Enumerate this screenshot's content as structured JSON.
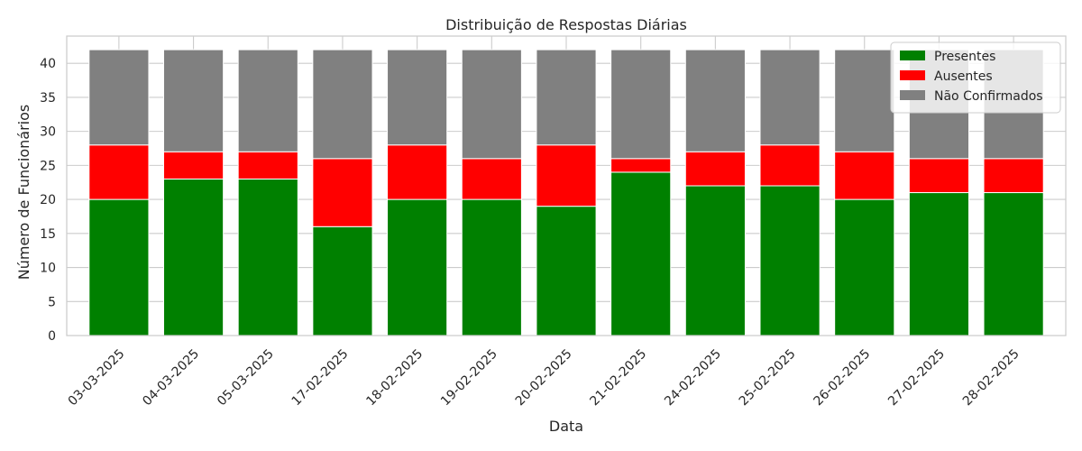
{
  "chart_data": {
    "type": "bar",
    "stacked": true,
    "title": "Distribuição de Respostas Diárias",
    "xlabel": "Data",
    "ylabel": "Número de Funcionários",
    "ylim": [
      0,
      44
    ],
    "yticks": [
      0,
      5,
      10,
      15,
      20,
      25,
      30,
      35,
      40
    ],
    "grid": true,
    "legend_position": "top-right",
    "categories": [
      "03-03-2025",
      "04-03-2025",
      "05-03-2025",
      "17-02-2025",
      "18-02-2025",
      "19-02-2025",
      "20-02-2025",
      "21-02-2025",
      "24-02-2025",
      "25-02-2025",
      "26-02-2025",
      "27-02-2025",
      "28-02-2025"
    ],
    "series": [
      {
        "name": "Presentes",
        "color": "#008000",
        "values": [
          20,
          23,
          23,
          16,
          20,
          20,
          19,
          24,
          22,
          22,
          20,
          21,
          21
        ]
      },
      {
        "name": "Ausentes",
        "color": "#ff0000",
        "values": [
          8,
          4,
          4,
          10,
          8,
          6,
          9,
          2,
          5,
          6,
          7,
          5,
          5
        ]
      },
      {
        "name": "Não Confirmados",
        "color": "#808080",
        "values": [
          14,
          15,
          15,
          16,
          14,
          16,
          14,
          16,
          15,
          14,
          15,
          16,
          16
        ]
      }
    ]
  }
}
